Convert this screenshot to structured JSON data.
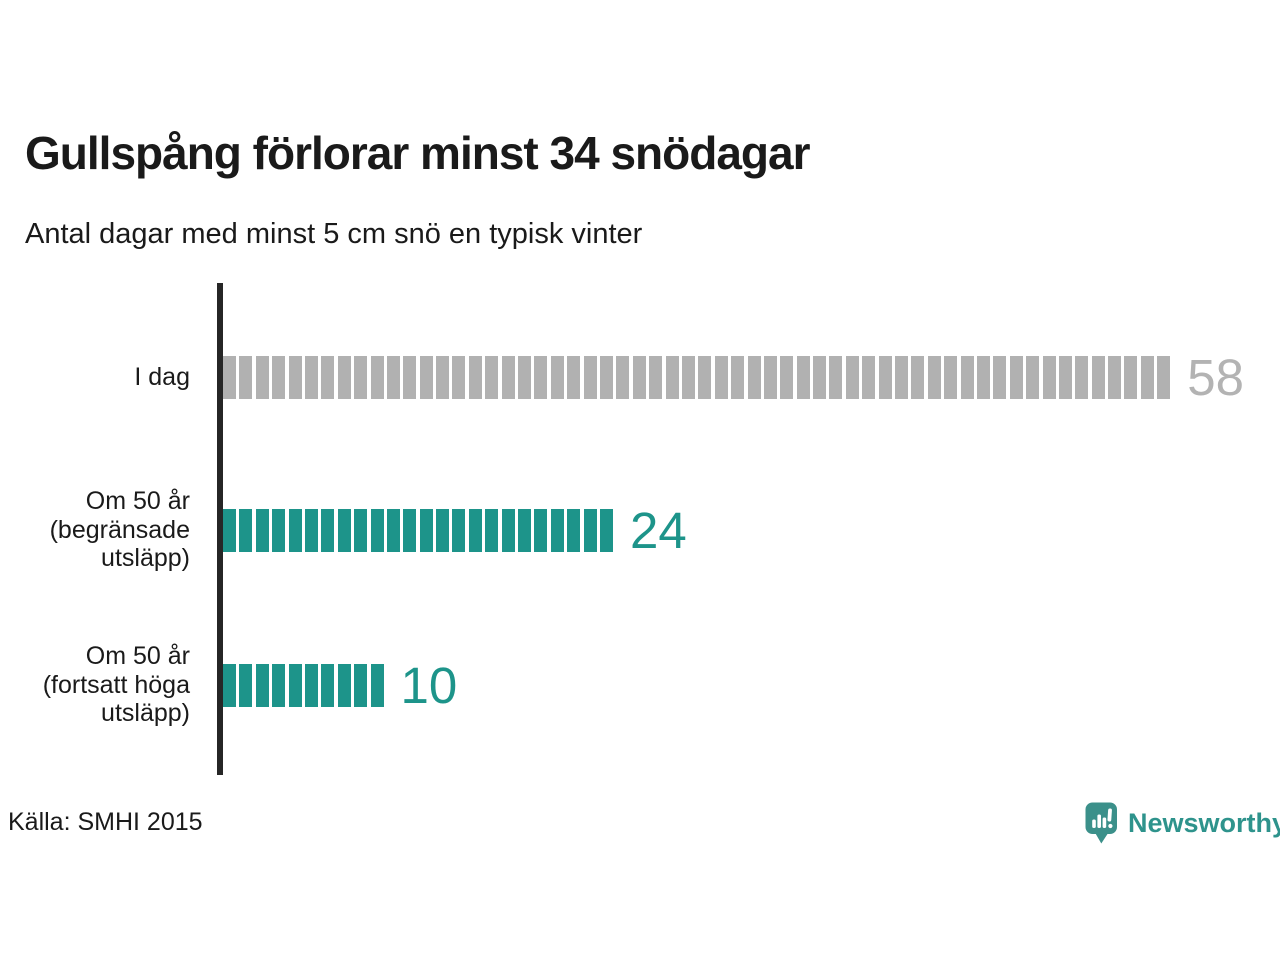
{
  "header": {
    "title": "Gullspång förlorar minst 34 snödagar",
    "subtitle": "Antal dagar med minst 5 cm snö en typisk vinter"
  },
  "chart_data": {
    "type": "bar",
    "orientation": "horizontal",
    "segmented": true,
    "title": "Gullspång förlorar minst 34 snödagar",
    "subtitle": "Antal dagar med minst 5 cm snö en typisk vinter",
    "xlabel": "",
    "ylabel": "",
    "xlim": [
      0,
      58
    ],
    "grid": false,
    "legend": "none",
    "categories": [
      "I dag",
      "Om 50 år (begränsade utsläpp)",
      "Om 50 år (fortsatt höga utsläpp)"
    ],
    "values": [
      58,
      24,
      10
    ],
    "rows": [
      {
        "label_lines": [
          "I dag"
        ],
        "value": 58,
        "bar_color": "#b1b1b1",
        "value_color": "#b3b3b3"
      },
      {
        "label_lines": [
          "Om 50 år",
          "(begränsade",
          "utsläpp)"
        ],
        "value": 24,
        "bar_color": "#1d948a",
        "value_color": "#1d948a"
      },
      {
        "label_lines": [
          "Om 50 år",
          "(fortsatt höga",
          "utsläpp)"
        ],
        "value": 10,
        "bar_color": "#1d948a",
        "value_color": "#1d948a"
      }
    ]
  },
  "footer": {
    "source": "Källa: SMHI 2015",
    "brand": {
      "name": "Newsworthy",
      "icon": "newsworthy-bubble-barchart-icon",
      "text_color": "#2e938c",
      "icon_color": "#3b908a"
    }
  },
  "colors": {
    "background": "#ffffff",
    "axis": "#262626",
    "text": "#1a1a1a",
    "teal": "#1d948a",
    "gray": "#b1b1b1"
  }
}
